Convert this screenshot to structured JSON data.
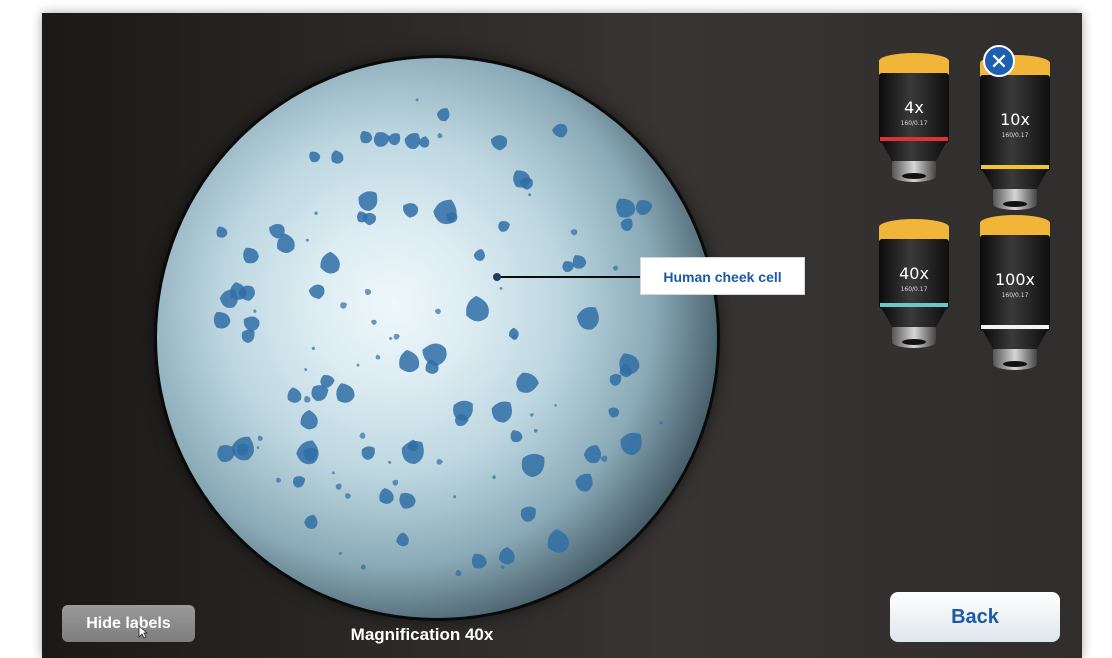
{
  "viewer": {
    "label_text": "Human cheek cell",
    "magnification_text": "Magnification 40x"
  },
  "objectives": [
    {
      "name": "4x",
      "spec": "160/0.17",
      "ring_color": "#d8333b",
      "cap_color": "#f1b53a"
    },
    {
      "name": "10x",
      "spec": "160/0.17",
      "ring_color": "#f0c530",
      "cap_color": "#f1b53a"
    },
    {
      "name": "40x",
      "spec": "160/0.17",
      "ring_color": "#6fc6c6",
      "cap_color": "#f1b53a"
    },
    {
      "name": "100x",
      "spec": "160/0.17",
      "ring_color": "#f4f4f4",
      "cap_color": "#f1b53a"
    }
  ],
  "close_icon": "close-icon",
  "buttons": {
    "hide_labels": "Hide labels",
    "back": "Back"
  },
  "colors": {
    "accent_blue": "#1a5aa6",
    "close_blue": "#1d5fb1",
    "cell_blue": "#2f6ea6"
  }
}
